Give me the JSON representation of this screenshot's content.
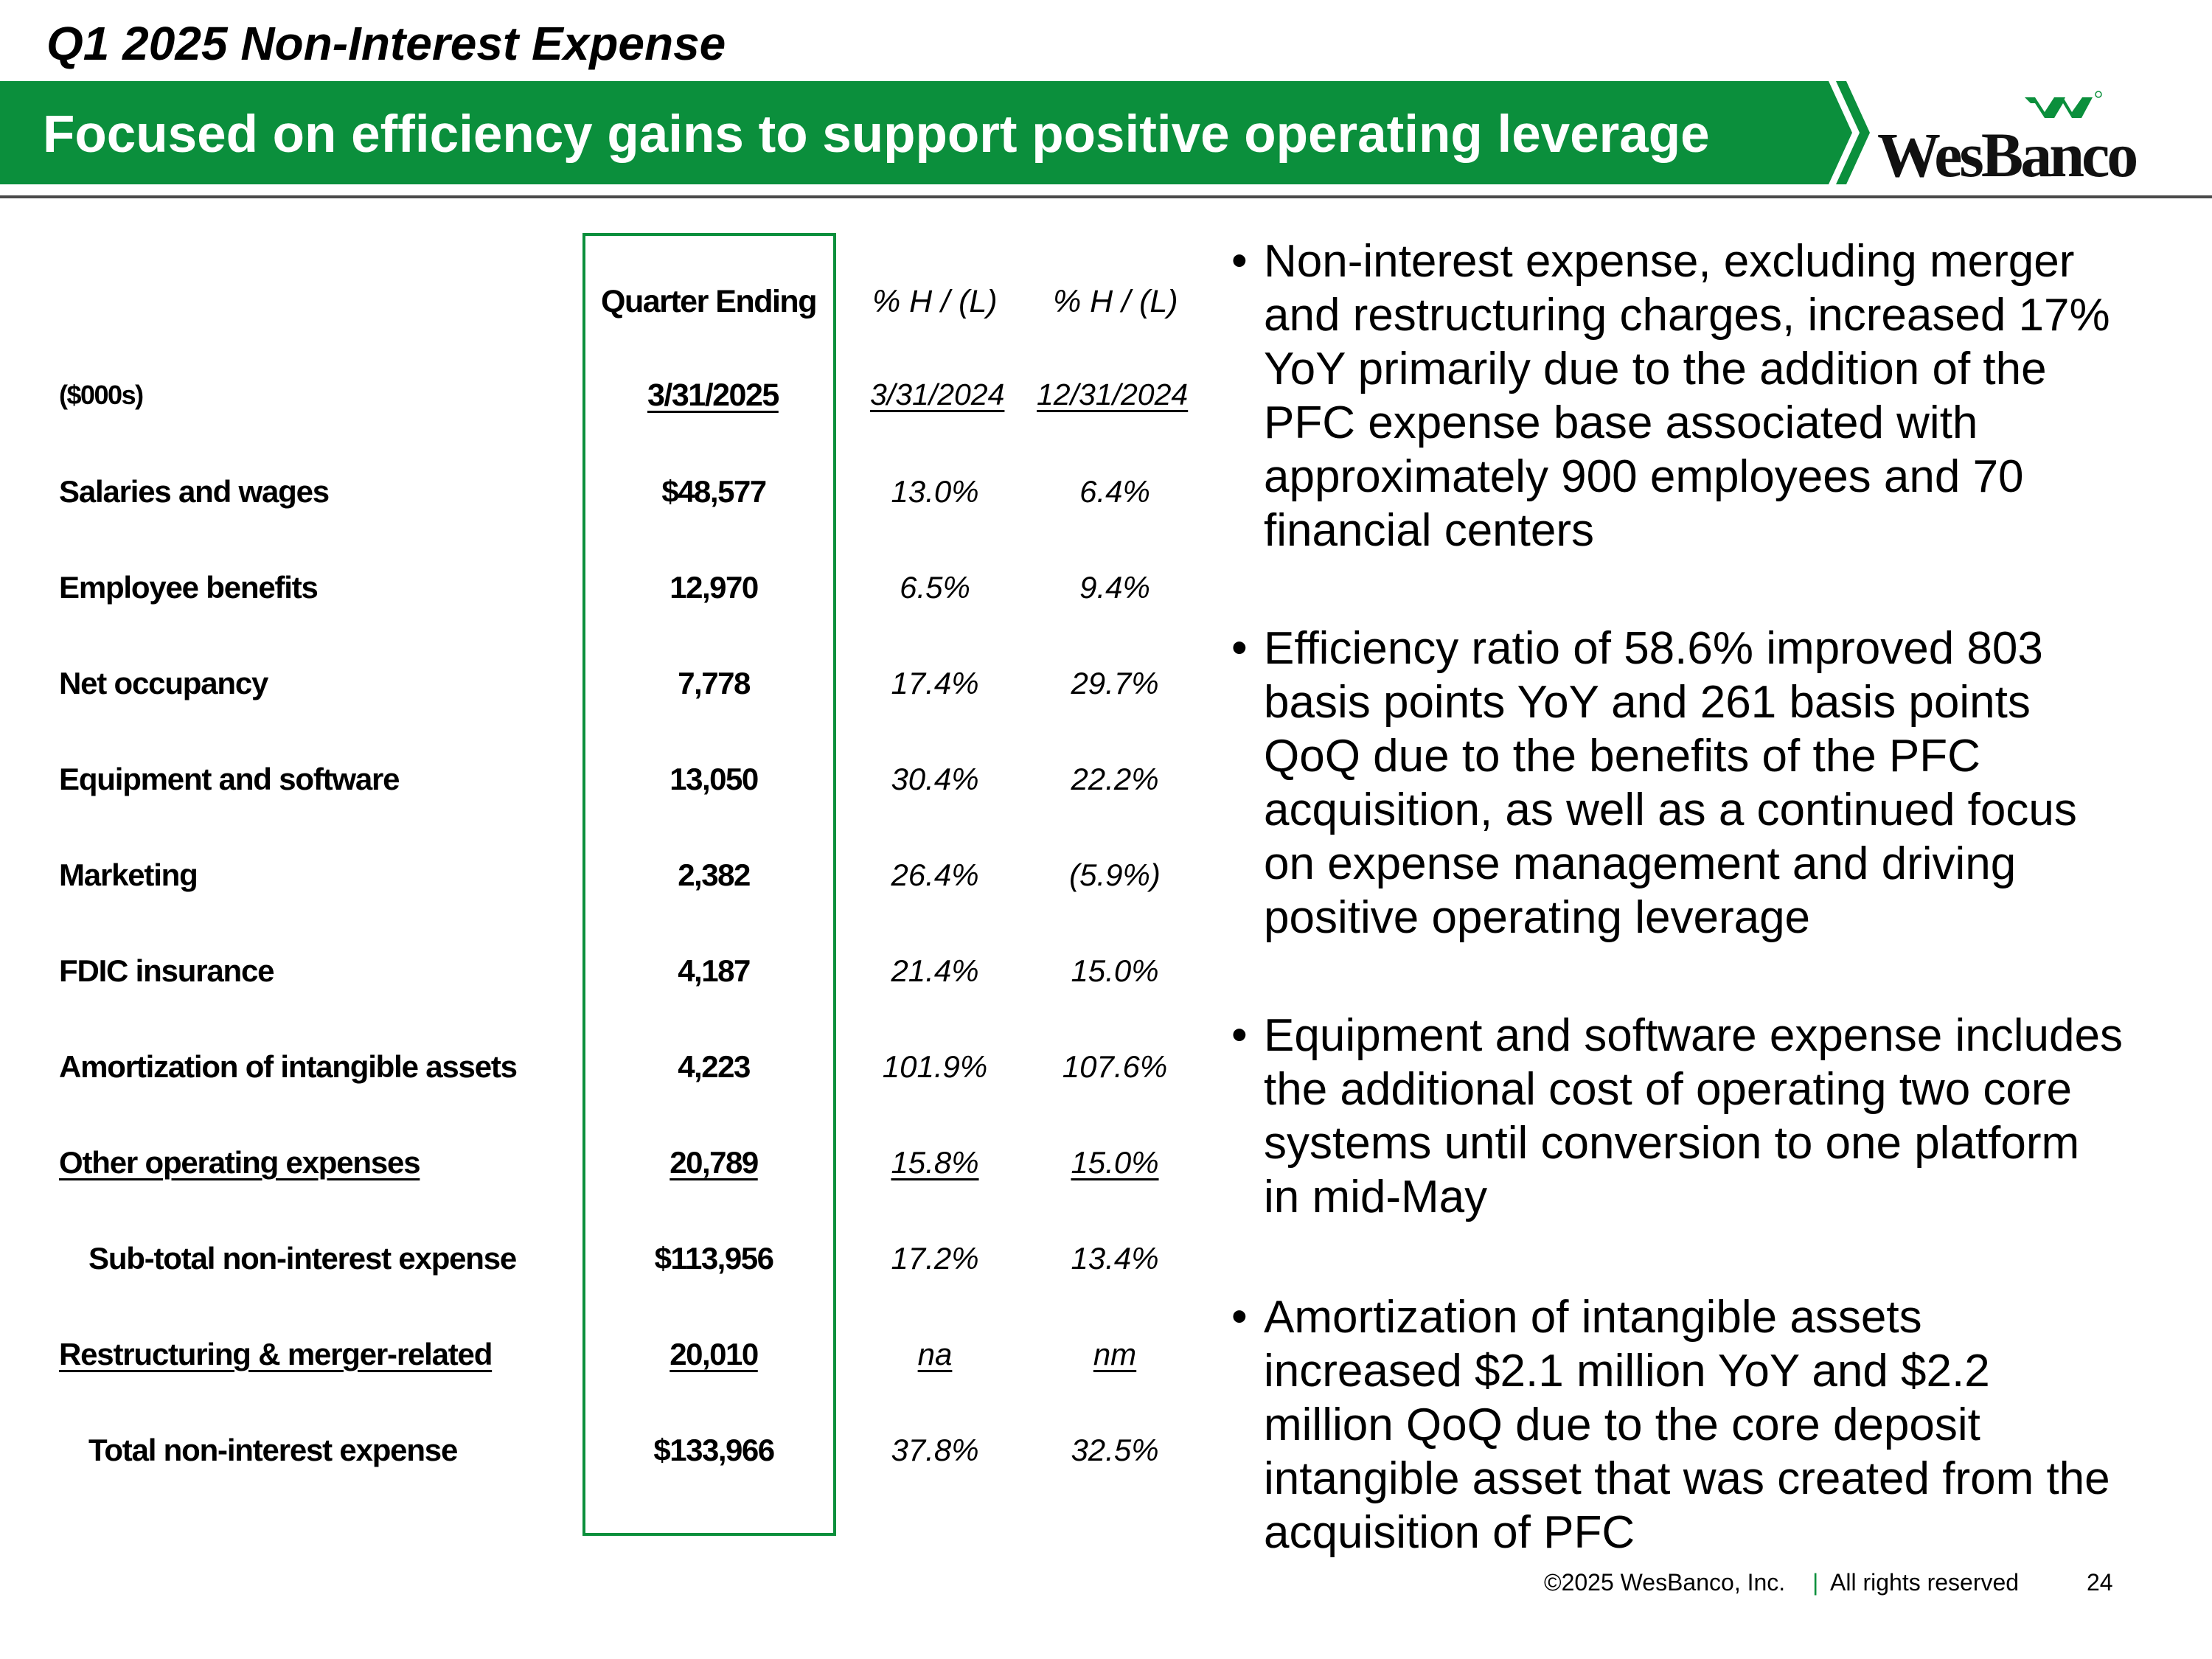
{
  "slide": {
    "title": "Q1 2025 Non-Interest Expense",
    "banner": "Focused on efficiency gains to support positive operating leverage",
    "logo_text": "WesBanco",
    "accent_color": "#0b8f3c"
  },
  "table": {
    "header": {
      "col1_line1": "Quarter Ending",
      "col2_line1": "% H / (L)",
      "col3_line1": "% H / (L)",
      "units": "($000s)",
      "col1_line2": "3/31/2025",
      "col2_line2": "3/31/2024",
      "col3_line2": "12/31/2024"
    },
    "rows": [
      {
        "label": "Salaries and wages",
        "value": "$48,577",
        "yoy": "13.0%",
        "qoq": "6.4%"
      },
      {
        "label": "Employee benefits",
        "value": "12,970",
        "yoy": "6.5%",
        "qoq": "9.4%"
      },
      {
        "label": "Net occupancy",
        "value": "7,778",
        "yoy": "17.4%",
        "qoq": "29.7%"
      },
      {
        "label": "Equipment and software",
        "value": "13,050",
        "yoy": "30.4%",
        "qoq": "22.2%"
      },
      {
        "label": "Marketing",
        "value": "2,382",
        "yoy": "26.4%",
        "qoq": "(5.9%)"
      },
      {
        "label": "FDIC insurance",
        "value": "4,187",
        "yoy": "21.4%",
        "qoq": "15.0%"
      },
      {
        "label": "Amortization of intangible assets",
        "value": "4,223",
        "yoy": "101.9%",
        "qoq": "107.6%"
      },
      {
        "label": "Other operating expenses",
        "value": "20,789",
        "yoy": "15.8%",
        "qoq": "15.0%"
      },
      {
        "label": "Sub-total non-interest expense",
        "value": "$113,956",
        "yoy": "17.2%",
        "qoq": "13.4%"
      },
      {
        "label": "Restructuring & merger-related",
        "value": "20,010",
        "yoy": "na",
        "qoq": "nm"
      },
      {
        "label": "Total non-interest expense",
        "value": "$133,966",
        "yoy": "37.8%",
        "qoq": "32.5%"
      }
    ]
  },
  "bullets": [
    {
      "lines": [
        "Non-interest expense, excluding merger",
        "and restructuring charges, increased 17%",
        "YoY primarily due to the addition of the",
        "PFC expense base associated with",
        "approximately 900 employees and 70",
        "financial centers"
      ]
    },
    {
      "lines": [
        "Efficiency ratio of 58.6% improved 803",
        "basis points YoY and 261 basis points",
        "QoQ due to the benefits of the PFC",
        "acquisition, as well as a continued focus",
        "on expense management and driving",
        "positive operating leverage"
      ]
    },
    {
      "lines": [
        "Equipment and software expense includes",
        "the additional cost of operating two core",
        "systems until conversion to one platform",
        "in mid-May"
      ]
    },
    {
      "lines": [
        "Amortization of intangible assets",
        "increased $2.1 million YoY and $2.2",
        "million QoQ due to the core deposit",
        "intangible asset that was created from the",
        "acquisition of PFC"
      ]
    }
  ],
  "bullet_symbol": "•",
  "footer": {
    "copyright": "©2025 WesBanco, Inc.",
    "separator": "|",
    "rights": "All rights reserved",
    "page": "24"
  }
}
